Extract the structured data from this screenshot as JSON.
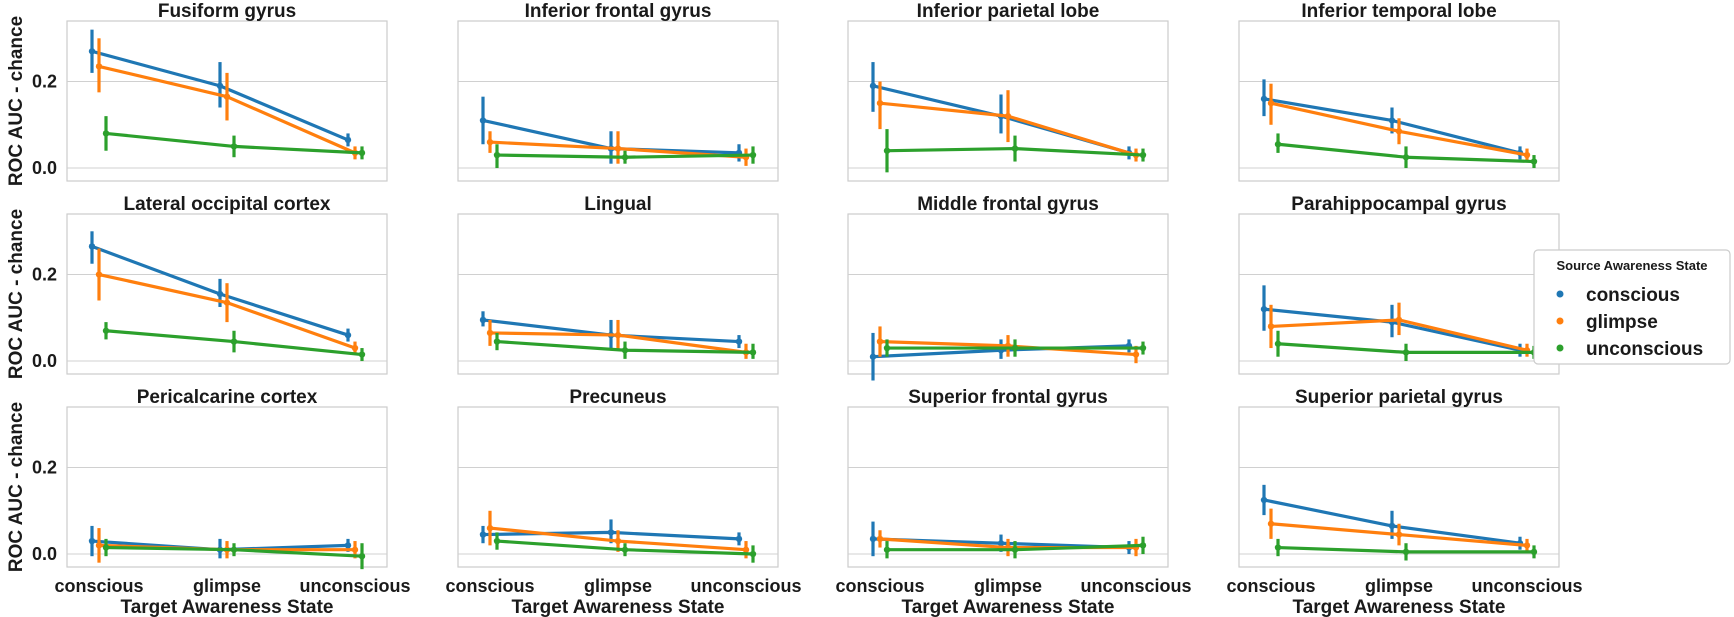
{
  "chart_data": {
    "type": "line",
    "figure_layout": "3x4 grid of point plots with error bars",
    "shared_y": true,
    "ylim": [
      -0.03,
      0.34
    ],
    "yticks": [
      0.0,
      0.2
    ],
    "ytick_labels": [
      "0.0",
      "0.2"
    ],
    "ylabel": "ROC AUC - chance",
    "xlabel": "Target Awareness State",
    "categories": [
      "conscious",
      "glimpse",
      "unconscious"
    ],
    "grid": "horizontal",
    "legend": {
      "title": "Source Awareness State",
      "position": "right",
      "entries": [
        "conscious",
        "glimpse",
        "unconscious"
      ]
    },
    "colors": {
      "conscious": "#1f77b4",
      "glimpse": "#ff7f0e",
      "unconscious": "#2ca02c"
    },
    "panels": [
      {
        "title": "Fusiform gyrus",
        "series": [
          {
            "name": "conscious",
            "values": [
              0.27,
              0.19,
              0.065
            ],
            "ci": [
              [
                0.22,
                0.32
              ],
              [
                0.14,
                0.245
              ],
              [
                0.05,
                0.08
              ]
            ]
          },
          {
            "name": "glimpse",
            "values": [
              0.235,
              0.165,
              0.035
            ],
            "ci": [
              [
                0.175,
                0.3
              ],
              [
                0.11,
                0.22
              ],
              [
                0.02,
                0.05
              ]
            ]
          },
          {
            "name": "unconscious",
            "values": [
              0.08,
              0.05,
              0.035
            ],
            "ci": [
              [
                0.04,
                0.12
              ],
              [
                0.025,
                0.075
              ],
              [
                0.02,
                0.05
              ]
            ]
          }
        ]
      },
      {
        "title": "Inferior frontal gyrus",
        "series": [
          {
            "name": "conscious",
            "values": [
              0.11,
              0.045,
              0.035
            ],
            "ci": [
              [
                0.055,
                0.165
              ],
              [
                0.01,
                0.085
              ],
              [
                0.015,
                0.055
              ]
            ]
          },
          {
            "name": "glimpse",
            "values": [
              0.06,
              0.045,
              0.025
            ],
            "ci": [
              [
                0.035,
                0.085
              ],
              [
                0.01,
                0.085
              ],
              [
                0.005,
                0.045
              ]
            ]
          },
          {
            "name": "unconscious",
            "values": [
              0.03,
              0.025,
              0.03
            ],
            "ci": [
              [
                0.0,
                0.055
              ],
              [
                0.01,
                0.04
              ],
              [
                0.01,
                0.05
              ]
            ]
          }
        ]
      },
      {
        "title": "Inferior parietal lobe",
        "series": [
          {
            "name": "conscious",
            "values": [
              0.19,
              0.12,
              0.035
            ],
            "ci": [
              [
                0.13,
                0.245
              ],
              [
                0.08,
                0.17
              ],
              [
                0.02,
                0.05
              ]
            ]
          },
          {
            "name": "glimpse",
            "values": [
              0.15,
              0.12,
              0.03
            ],
            "ci": [
              [
                0.09,
                0.2
              ],
              [
                0.06,
                0.18
              ],
              [
                0.015,
                0.045
              ]
            ]
          },
          {
            "name": "unconscious",
            "values": [
              0.04,
              0.045,
              0.03
            ],
            "ci": [
              [
                -0.01,
                0.09
              ],
              [
                0.015,
                0.075
              ],
              [
                0.015,
                0.045
              ]
            ]
          }
        ]
      },
      {
        "title": "Inferior temporal lobe",
        "series": [
          {
            "name": "conscious",
            "values": [
              0.16,
              0.11,
              0.035
            ],
            "ci": [
              [
                0.12,
                0.205
              ],
              [
                0.08,
                0.14
              ],
              [
                0.02,
                0.05
              ]
            ]
          },
          {
            "name": "glimpse",
            "values": [
              0.15,
              0.085,
              0.03
            ],
            "ci": [
              [
                0.1,
                0.195
              ],
              [
                0.055,
                0.115
              ],
              [
                0.015,
                0.045
              ]
            ]
          },
          {
            "name": "unconscious",
            "values": [
              0.055,
              0.025,
              0.015
            ],
            "ci": [
              [
                0.035,
                0.08
              ],
              [
                0.0,
                0.05
              ],
              [
                0.0,
                0.03
              ]
            ]
          }
        ]
      },
      {
        "title": "Lateral occipital cortex",
        "series": [
          {
            "name": "conscious",
            "values": [
              0.265,
              0.155,
              0.06
            ],
            "ci": [
              [
                0.225,
                0.3
              ],
              [
                0.125,
                0.19
              ],
              [
                0.045,
                0.075
              ]
            ]
          },
          {
            "name": "glimpse",
            "values": [
              0.2,
              0.135,
              0.03
            ],
            "ci": [
              [
                0.14,
                0.26
              ],
              [
                0.09,
                0.18
              ],
              [
                0.015,
                0.045
              ]
            ]
          },
          {
            "name": "unconscious",
            "values": [
              0.07,
              0.045,
              0.015
            ],
            "ci": [
              [
                0.05,
                0.09
              ],
              [
                0.02,
                0.07
              ],
              [
                0.0,
                0.03
              ]
            ]
          }
        ]
      },
      {
        "title": "Lingual",
        "series": [
          {
            "name": "conscious",
            "values": [
              0.095,
              0.06,
              0.045
            ],
            "ci": [
              [
                0.08,
                0.115
              ],
              [
                0.03,
                0.095
              ],
              [
                0.03,
                0.06
              ]
            ]
          },
          {
            "name": "glimpse",
            "values": [
              0.065,
              0.06,
              0.02
            ],
            "ci": [
              [
                0.035,
                0.095
              ],
              [
                0.025,
                0.095
              ],
              [
                0.005,
                0.04
              ]
            ]
          },
          {
            "name": "unconscious",
            "values": [
              0.045,
              0.025,
              0.02
            ],
            "ci": [
              [
                0.025,
                0.065
              ],
              [
                0.005,
                0.045
              ],
              [
                0.005,
                0.04
              ]
            ]
          }
        ]
      },
      {
        "title": "Middle frontal gyrus",
        "series": [
          {
            "name": "conscious",
            "values": [
              0.01,
              0.025,
              0.035
            ],
            "ci": [
              [
                -0.045,
                0.065
              ],
              [
                0.005,
                0.05
              ],
              [
                0.02,
                0.05
              ]
            ]
          },
          {
            "name": "glimpse",
            "values": [
              0.045,
              0.035,
              0.015
            ],
            "ci": [
              [
                0.01,
                0.08
              ],
              [
                0.01,
                0.06
              ],
              [
                -0.005,
                0.035
              ]
            ]
          },
          {
            "name": "unconscious",
            "values": [
              0.03,
              0.03,
              0.03
            ],
            "ci": [
              [
                0.01,
                0.05
              ],
              [
                0.01,
                0.05
              ],
              [
                0.015,
                0.045
              ]
            ]
          }
        ]
      },
      {
        "title": "Parahippocampal gyrus",
        "series": [
          {
            "name": "conscious",
            "values": [
              0.12,
              0.09,
              0.025
            ],
            "ci": [
              [
                0.07,
                0.175
              ],
              [
                0.055,
                0.13
              ],
              [
                0.01,
                0.04
              ]
            ]
          },
          {
            "name": "glimpse",
            "values": [
              0.08,
              0.095,
              0.025
            ],
            "ci": [
              [
                0.03,
                0.13
              ],
              [
                0.06,
                0.135
              ],
              [
                0.01,
                0.04
              ]
            ]
          },
          {
            "name": "unconscious",
            "values": [
              0.04,
              0.02,
              0.02
            ],
            "ci": [
              [
                0.01,
                0.07
              ],
              [
                0.0,
                0.04
              ],
              [
                0.005,
                0.035
              ]
            ]
          }
        ]
      },
      {
        "title": "Pericalcarine cortex",
        "series": [
          {
            "name": "conscious",
            "values": [
              0.03,
              0.01,
              0.02
            ],
            "ci": [
              [
                -0.005,
                0.065
              ],
              [
                -0.01,
                0.035
              ],
              [
                0.005,
                0.035
              ]
            ]
          },
          {
            "name": "glimpse",
            "values": [
              0.02,
              0.01,
              0.01
            ],
            "ci": [
              [
                -0.02,
                0.06
              ],
              [
                -0.01,
                0.03
              ],
              [
                -0.01,
                0.03
              ]
            ]
          },
          {
            "name": "unconscious",
            "values": [
              0.015,
              0.01,
              -0.005
            ],
            "ci": [
              [
                -0.005,
                0.035
              ],
              [
                -0.005,
                0.025
              ],
              [
                -0.035,
                0.025
              ]
            ]
          }
        ]
      },
      {
        "title": "Precuneus",
        "series": [
          {
            "name": "conscious",
            "values": [
              0.045,
              0.05,
              0.035
            ],
            "ci": [
              [
                0.025,
                0.065
              ],
              [
                0.025,
                0.08
              ],
              [
                0.02,
                0.05
              ]
            ]
          },
          {
            "name": "glimpse",
            "values": [
              0.06,
              0.03,
              0.01
            ],
            "ci": [
              [
                0.02,
                0.1
              ],
              [
                0.005,
                0.055
              ],
              [
                -0.01,
                0.03
              ]
            ]
          },
          {
            "name": "unconscious",
            "values": [
              0.03,
              0.01,
              0.0
            ],
            "ci": [
              [
                0.01,
                0.05
              ],
              [
                -0.005,
                0.025
              ],
              [
                -0.02,
                0.02
              ]
            ]
          }
        ]
      },
      {
        "title": "Superior frontal gyrus",
        "series": [
          {
            "name": "conscious",
            "values": [
              0.035,
              0.025,
              0.015
            ],
            "ci": [
              [
                -0.005,
                0.075
              ],
              [
                0.005,
                0.045
              ],
              [
                0.0,
                0.03
              ]
            ]
          },
          {
            "name": "glimpse",
            "values": [
              0.035,
              0.015,
              0.015
            ],
            "ci": [
              [
                0.015,
                0.055
              ],
              [
                -0.005,
                0.035
              ],
              [
                -0.005,
                0.035
              ]
            ]
          },
          {
            "name": "unconscious",
            "values": [
              0.01,
              0.01,
              0.02
            ],
            "ci": [
              [
                -0.01,
                0.03
              ],
              [
                -0.01,
                0.03
              ],
              [
                0.0,
                0.04
              ]
            ]
          }
        ]
      },
      {
        "title": "Superior parietal gyrus",
        "series": [
          {
            "name": "conscious",
            "values": [
              0.125,
              0.065,
              0.025
            ],
            "ci": [
              [
                0.09,
                0.16
              ],
              [
                0.035,
                0.1
              ],
              [
                0.01,
                0.04
              ]
            ]
          },
          {
            "name": "glimpse",
            "values": [
              0.07,
              0.045,
              0.02
            ],
            "ci": [
              [
                0.035,
                0.105
              ],
              [
                0.02,
                0.07
              ],
              [
                0.005,
                0.035
              ]
            ]
          },
          {
            "name": "unconscious",
            "values": [
              0.015,
              0.005,
              0.005
            ],
            "ci": [
              [
                -0.005,
                0.035
              ],
              [
                -0.015,
                0.025
              ],
              [
                -0.01,
                0.02
              ]
            ]
          }
        ]
      }
    ]
  }
}
